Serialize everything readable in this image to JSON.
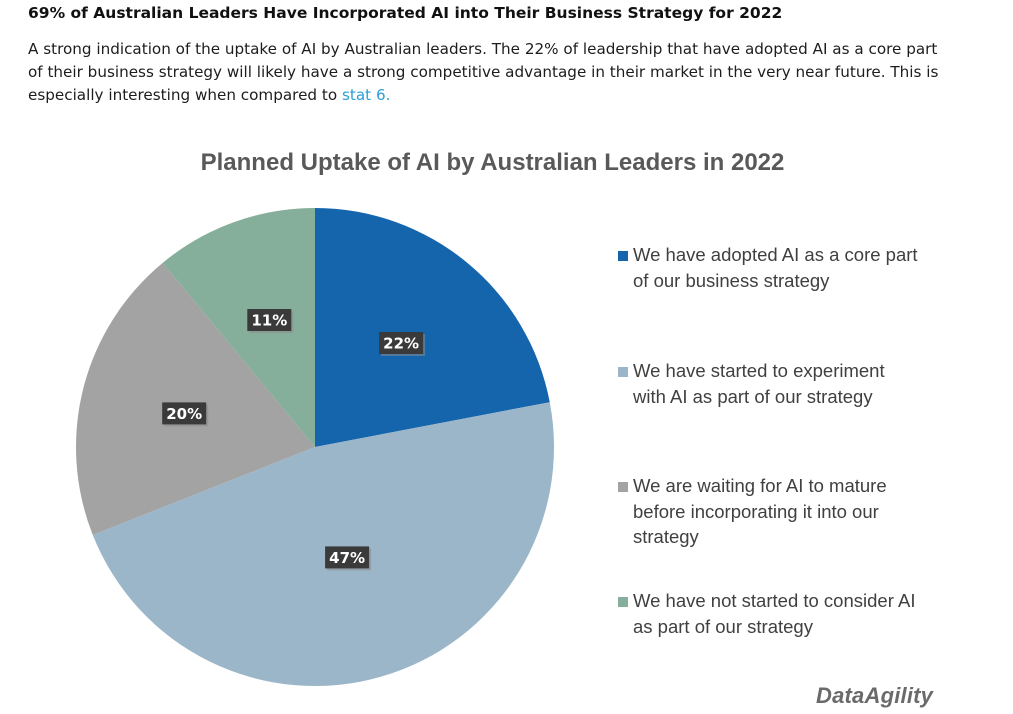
{
  "article": {
    "heading": "69% of Australian Leaders Have Incorporated AI into Their Business Strategy for 2022",
    "body_text": "A strong indication of the uptake of AI by Australian leaders. The 22% of leadership that have adopted AI as a core part of their business strategy will likely have a strong competitive advantage in their market in the very near future. This is especially interesting when compared to ",
    "link_text": "stat 6."
  },
  "chart_data": {
    "type": "pie",
    "title": "Planned Uptake of AI by Australian Leaders in 2022",
    "categories": [
      "We have adopted AI as a core part of our business strategy",
      "We have started to experiment with AI as part of our strategy",
      "We are waiting for AI to mature before incorporating it into our strategy",
      "We have not started to consider AI as part of our strategy"
    ],
    "values": [
      22,
      47,
      20,
      11
    ],
    "data_labels": [
      "22%",
      "47%",
      "20%",
      "11%"
    ],
    "colors": [
      "#1565ad",
      "#9bb6c9",
      "#a3a3a3",
      "#85ae9b"
    ],
    "legend_position": "right"
  },
  "logo_text": "DataAgility"
}
